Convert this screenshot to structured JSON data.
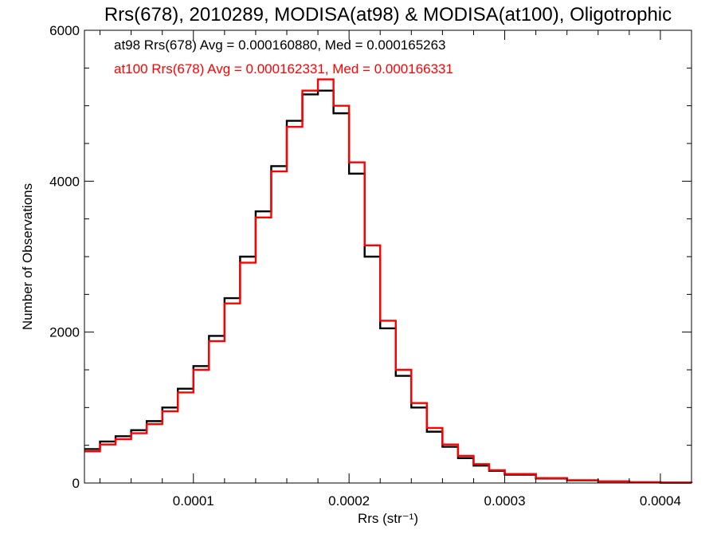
{
  "chart_data": {
    "type": "line",
    "title": "Rrs(678), 2010289, MODISA(at98) & MODISA(at100), Oligotrophic",
    "xlabel": "Rrs (str⁻¹)",
    "ylabel": "Number of Observations",
    "xlim": [
      3e-05,
      0.00042
    ],
    "ylim": [
      0,
      6000
    ],
    "x_ticks": [
      0.0001,
      0.0002,
      0.0003,
      0.0004
    ],
    "x_tick_labels": [
      "0.0001",
      "0.0002",
      "0.0003",
      "0.0004"
    ],
    "y_ticks": [
      0,
      2000,
      4000,
      6000
    ],
    "y_tick_labels": [
      "0",
      "2000",
      "4000",
      "6000"
    ],
    "grid": false,
    "legend_position": "top-left",
    "series": [
      {
        "name": "at98",
        "color": "#000000",
        "legend_text": "at98 Rrs(678) Avg = 0.000160880, Med = 0.000165263",
        "x": [
          3e-05,
          4e-05,
          5e-05,
          6e-05,
          7e-05,
          8e-05,
          9e-05,
          0.0001,
          0.00011,
          0.00012,
          0.00013,
          0.00014,
          0.00015,
          0.00016,
          0.00017,
          0.00018,
          0.00019,
          0.0002,
          0.00021,
          0.00022,
          0.00023,
          0.00024,
          0.00025,
          0.00026,
          0.00027,
          0.00028,
          0.00029,
          0.0003,
          0.00032,
          0.00034,
          0.00036,
          0.00038,
          0.0004,
          0.00042
        ],
        "y": [
          450,
          550,
          620,
          700,
          820,
          1000,
          1250,
          1550,
          1950,
          2450,
          3000,
          3600,
          4200,
          4800,
          5150,
          5200,
          4900,
          4100,
          3000,
          2050,
          1420,
          1000,
          680,
          480,
          330,
          230,
          160,
          110,
          60,
          35,
          20,
          10,
          5,
          2
        ]
      },
      {
        "name": "at100",
        "color": "#ff0000",
        "legend_text": "at100 Rrs(678) Avg = 0.000162331, Med = 0.000166331",
        "x": [
          3e-05,
          4e-05,
          5e-05,
          6e-05,
          7e-05,
          8e-05,
          9e-05,
          0.0001,
          0.00011,
          0.00012,
          0.00013,
          0.00014,
          0.00015,
          0.00016,
          0.00017,
          0.00018,
          0.00019,
          0.0002,
          0.00021,
          0.00022,
          0.00023,
          0.00024,
          0.00025,
          0.00026,
          0.00027,
          0.00028,
          0.00029,
          0.0003,
          0.00032,
          0.00034,
          0.00036,
          0.00038,
          0.0004,
          0.00042
        ],
        "y": [
          420,
          510,
          580,
          660,
          780,
          950,
          1200,
          1500,
          1880,
          2380,
          2920,
          3520,
          4130,
          4720,
          5200,
          5350,
          5000,
          4250,
          3150,
          2150,
          1500,
          1060,
          730,
          510,
          360,
          250,
          170,
          120,
          65,
          38,
          22,
          11,
          6,
          2
        ]
      }
    ]
  }
}
